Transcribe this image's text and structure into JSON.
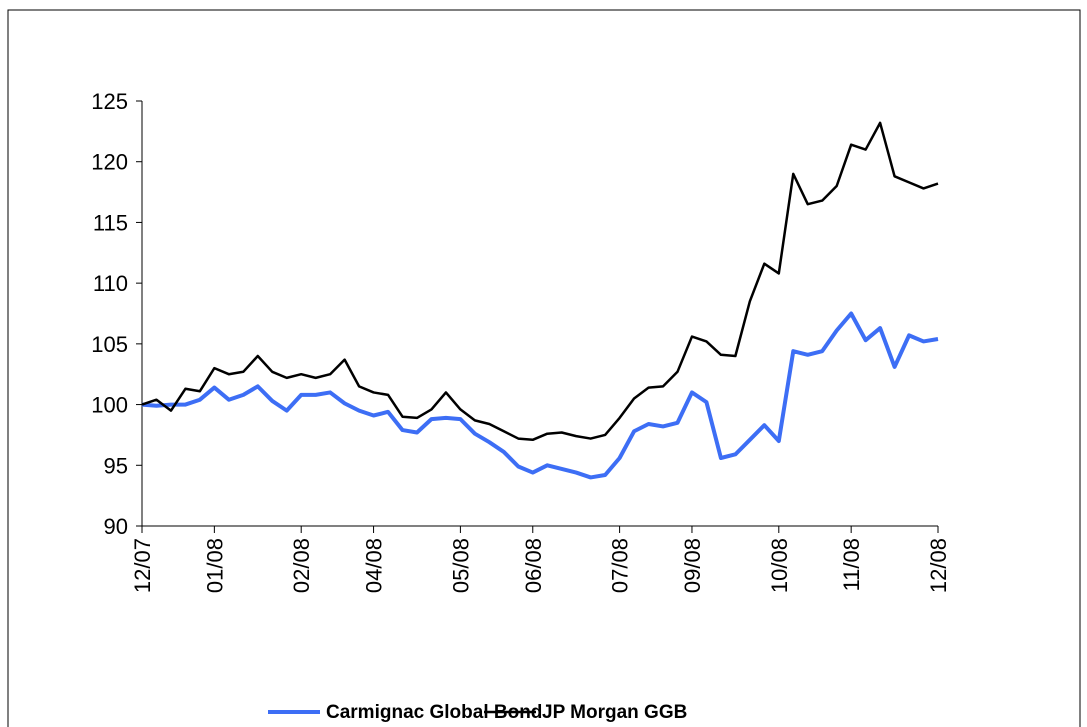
{
  "chart_data": {
    "type": "line",
    "categories": [
      "12/07",
      null,
      null,
      null,
      null,
      "01/08",
      null,
      null,
      null,
      null,
      null,
      "02/08",
      null,
      null,
      null,
      null,
      "04/08",
      null,
      null,
      null,
      null,
      null,
      "05/08",
      null,
      null,
      null,
      null,
      "06/08",
      null,
      null,
      null,
      null,
      null,
      "07/08",
      null,
      null,
      null,
      null,
      "09/08",
      null,
      null,
      null,
      null,
      null,
      "10/08",
      null,
      null,
      null,
      null,
      "11/08",
      null,
      null,
      null,
      null,
      null,
      "12/08"
    ],
    "series": [
      {
        "name": "Carmignac Global Bond",
        "color": "#3d6ef5",
        "values": [
          100,
          99.9,
          100,
          100,
          100.4,
          101.4,
          100.4,
          100.8,
          101.5,
          100.3,
          99.5,
          100.8,
          100.8,
          101,
          100.1,
          99.5,
          99.1,
          99.4,
          97.9,
          97.7,
          98.8,
          98.9,
          98.8,
          97.6,
          96.9,
          96.1,
          94.9,
          94.4,
          95,
          94.7,
          94.4,
          94,
          94.2,
          95.6,
          97.8,
          98.4,
          98.2,
          98.5,
          101,
          100.2,
          95.6,
          95.9,
          97.1,
          98.3,
          97,
          104.4,
          104.1,
          104.4,
          106.1,
          107.5,
          105.3,
          106.3,
          103.1,
          105.7,
          105.2,
          105.4
        ]
      },
      {
        "name": "JP Morgan GGB",
        "color": "#000000",
        "values": [
          100,
          100.4,
          99.5,
          101.3,
          101.1,
          103,
          102.5,
          102.7,
          104,
          102.7,
          102.2,
          102.5,
          102.2,
          102.5,
          103.7,
          101.5,
          101,
          100.8,
          99,
          98.9,
          99.6,
          101,
          99.6,
          98.7,
          98.4,
          97.8,
          97.2,
          97.1,
          97.6,
          97.7,
          97.4,
          97.2,
          97.5,
          98.9,
          100.5,
          101.4,
          101.5,
          102.7,
          105.6,
          105.2,
          104.1,
          104,
          108.5,
          111.6,
          110.8,
          119,
          116.5,
          116.8,
          118,
          121.4,
          121,
          123.2,
          118.8,
          118.3,
          117.8,
          118.2
        ]
      }
    ],
    "ylim": [
      90,
      125
    ],
    "yticks": [
      90,
      95,
      100,
      105,
      110,
      115,
      120,
      125
    ]
  }
}
